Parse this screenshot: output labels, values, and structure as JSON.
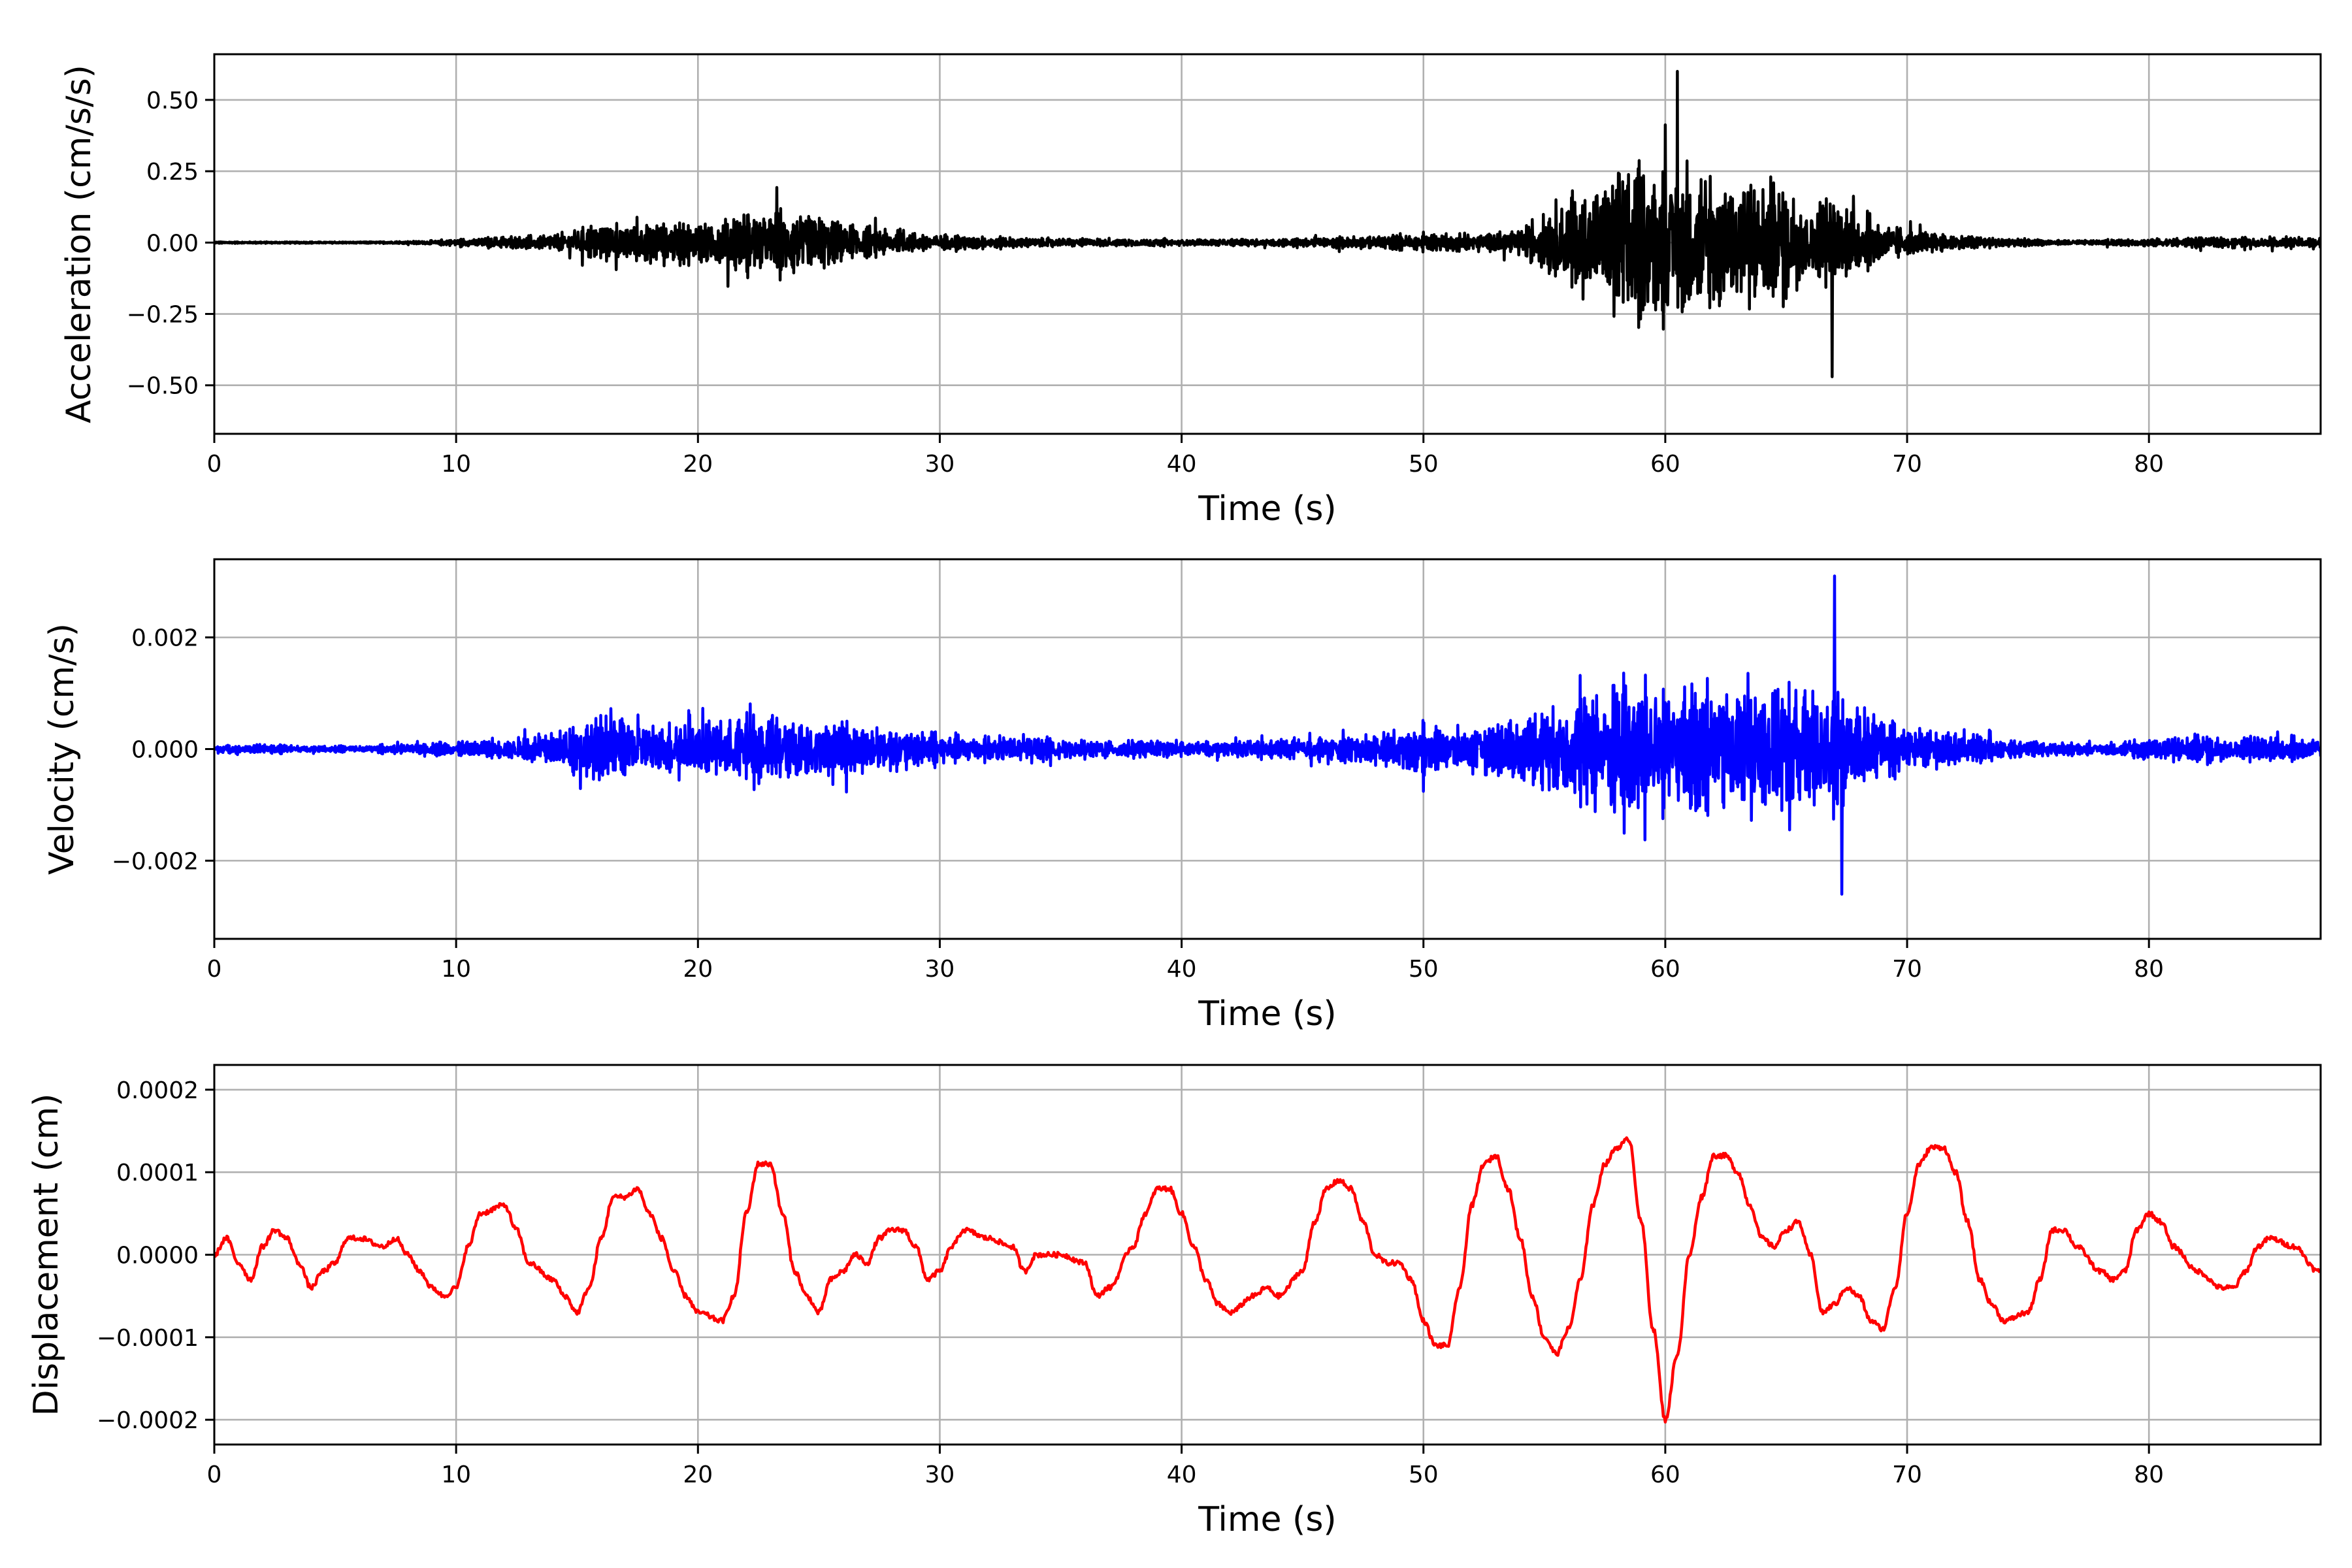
{
  "chart_data": [
    {
      "type": "line",
      "ylabel": "Acceleration (cm/s/s)",
      "xlabel": "Time (s)",
      "color": "#000000",
      "xlim": [
        0,
        87.1
      ],
      "ylim": [
        -0.67,
        0.66
      ],
      "grid": true,
      "xticks": [
        "0",
        "10",
        "20",
        "30",
        "40",
        "50",
        "60",
        "70",
        "80"
      ],
      "yticks": [
        -0.5,
        -0.25,
        0.0,
        0.25,
        0.5
      ],
      "ytick_labels": [
        "−0.50",
        "−0.25",
        "0.00",
        "0.25",
        "0.50"
      ],
      "peaks": {
        "max": 0.6,
        "min": -0.47,
        "max_time": 60.5,
        "min_time": 66.9
      },
      "envelope": [
        [
          0,
          0.005
        ],
        [
          2,
          0.005
        ],
        [
          4,
          0.005
        ],
        [
          6,
          0.005
        ],
        [
          8,
          0.008
        ],
        [
          10,
          0.02
        ],
        [
          12,
          0.04
        ],
        [
          14,
          0.05
        ],
        [
          16,
          0.12
        ],
        [
          18,
          0.13
        ],
        [
          20,
          0.13
        ],
        [
          22,
          0.2
        ],
        [
          24,
          0.22
        ],
        [
          26,
          0.12
        ],
        [
          28,
          0.08
        ],
        [
          30,
          0.05
        ],
        [
          32,
          0.04
        ],
        [
          34,
          0.03
        ],
        [
          36,
          0.025
        ],
        [
          38,
          0.025
        ],
        [
          40,
          0.02
        ],
        [
          42,
          0.02
        ],
        [
          44,
          0.025
        ],
        [
          46,
          0.03
        ],
        [
          48,
          0.04
        ],
        [
          50,
          0.06
        ],
        [
          52,
          0.06
        ],
        [
          54,
          0.08
        ],
        [
          56,
          0.3
        ],
        [
          58,
          0.45
        ],
        [
          60,
          0.5
        ],
        [
          62,
          0.45
        ],
        [
          64,
          0.45
        ],
        [
          66,
          0.3
        ],
        [
          68,
          0.2
        ],
        [
          70,
          0.08
        ],
        [
          72,
          0.05
        ],
        [
          74,
          0.03
        ],
        [
          76,
          0.015
        ],
        [
          78,
          0.015
        ],
        [
          80,
          0.025
        ],
        [
          82,
          0.03
        ],
        [
          84,
          0.03
        ],
        [
          86,
          0.035
        ]
      ]
    },
    {
      "type": "line",
      "ylabel": "Velocity (cm/s)",
      "xlabel": "Time (s)",
      "color": "#0000ff",
      "xlim": [
        0,
        87.1
      ],
      "ylim": [
        -0.0034,
        0.0034
      ],
      "grid": true,
      "xticks": [
        "0",
        "10",
        "20",
        "30",
        "40",
        "50",
        "60",
        "70",
        "80"
      ],
      "yticks": [
        -0.002,
        0.0,
        0.002
      ],
      "ytick_labels": [
        "−0.002",
        "0.000",
        "0.002"
      ],
      "peaks": {
        "max": 0.0031,
        "min": -0.0026,
        "max_time": 67.0,
        "min_time": 67.3
      },
      "envelope": [
        [
          0,
          0.00015
        ],
        [
          2,
          0.00015
        ],
        [
          4,
          0.0001
        ],
        [
          6,
          0.0001
        ],
        [
          8,
          0.00015
        ],
        [
          10,
          0.00025
        ],
        [
          12,
          0.00035
        ],
        [
          14,
          0.0005
        ],
        [
          16,
          0.0012
        ],
        [
          18,
          0.0009
        ],
        [
          20,
          0.0008
        ],
        [
          22,
          0.0011
        ],
        [
          24,
          0.0011
        ],
        [
          26,
          0.0008
        ],
        [
          28,
          0.0007
        ],
        [
          30,
          0.0005
        ],
        [
          32,
          0.0004
        ],
        [
          34,
          0.00035
        ],
        [
          36,
          0.0003
        ],
        [
          38,
          0.0003
        ],
        [
          40,
          0.00025
        ],
        [
          42,
          0.00025
        ],
        [
          44,
          0.0003
        ],
        [
          46,
          0.0004
        ],
        [
          48,
          0.0005
        ],
        [
          50,
          0.0008
        ],
        [
          52,
          0.0007
        ],
        [
          54,
          0.001
        ],
        [
          56,
          0.0018
        ],
        [
          58,
          0.0025
        ],
        [
          60,
          0.002
        ],
        [
          62,
          0.002
        ],
        [
          64,
          0.0023
        ],
        [
          66,
          0.0023
        ],
        [
          68,
          0.0014
        ],
        [
          70,
          0.0007
        ],
        [
          72,
          0.0005
        ],
        [
          74,
          0.0003
        ],
        [
          76,
          0.00025
        ],
        [
          78,
          0.00015
        ],
        [
          80,
          0.0004
        ],
        [
          82,
          0.0005
        ],
        [
          84,
          0.0004
        ],
        [
          86,
          0.0004
        ]
      ]
    },
    {
      "type": "line",
      "ylabel": "Displacement (cm)",
      "xlabel": "Time (s)",
      "color": "#ff0000",
      "xlim": [
        0,
        87.1
      ],
      "ylim": [
        -0.00023,
        0.00023
      ],
      "grid": true,
      "xticks": [
        "0",
        "10",
        "20",
        "30",
        "40",
        "50",
        "60",
        "70",
        "80"
      ],
      "yticks": [
        -0.0002,
        -0.0001,
        0.0,
        0.0001,
        0.0002
      ],
      "ytick_labels": [
        "−0.0002",
        "−0.0001",
        "0.0000",
        "0.0001",
        "0.0002"
      ],
      "points": [
        [
          0,
          0
        ],
        [
          0.5,
          2e-05
        ],
        [
          1,
          -1e-05
        ],
        [
          1.5,
          -3e-05
        ],
        [
          2,
          1e-05
        ],
        [
          2.5,
          3e-05
        ],
        [
          3,
          2e-05
        ],
        [
          3.5,
          -1e-05
        ],
        [
          4,
          -4e-05
        ],
        [
          4.5,
          -2e-05
        ],
        [
          5,
          -1e-05
        ],
        [
          5.5,
          2e-05
        ],
        [
          6,
          2e-05
        ],
        [
          7,
          1e-05
        ],
        [
          7.5,
          2e-05
        ],
        [
          8,
          0
        ],
        [
          8.5,
          -2e-05
        ],
        [
          9,
          -4e-05
        ],
        [
          9.5,
          -5e-05
        ],
        [
          10,
          -4e-05
        ],
        [
          10.5,
          1e-05
        ],
        [
          11,
          5e-05
        ],
        [
          12,
          6e-05
        ],
        [
          12.5,
          3e-05
        ],
        [
          13,
          -1e-05
        ],
        [
          14,
          -3e-05
        ],
        [
          14.5,
          -5e-05
        ],
        [
          15,
          -7e-05
        ],
        [
          15.5,
          -4e-05
        ],
        [
          16,
          2e-05
        ],
        [
          16.5,
          7e-05
        ],
        [
          17,
          7e-05
        ],
        [
          17.5,
          8e-05
        ],
        [
          18,
          5e-05
        ],
        [
          18.5,
          2e-05
        ],
        [
          19,
          -2e-05
        ],
        [
          19.5,
          -5e-05
        ],
        [
          20,
          -7e-05
        ],
        [
          21,
          -8e-05
        ],
        [
          21.5,
          -5e-05
        ],
        [
          22,
          5e-05
        ],
        [
          22.5,
          0.00011
        ],
        [
          23,
          0.00011
        ],
        [
          23.5,
          5e-05
        ],
        [
          24,
          -2e-05
        ],
        [
          24.5,
          -5e-05
        ],
        [
          25,
          -7e-05
        ],
        [
          25.5,
          -3e-05
        ],
        [
          26,
          -2e-05
        ],
        [
          26.5,
          0
        ],
        [
          27,
          -1e-05
        ],
        [
          27.5,
          2e-05
        ],
        [
          28,
          3e-05
        ],
        [
          28.5,
          3e-05
        ],
        [
          29,
          1e-05
        ],
        [
          29.5,
          -3e-05
        ],
        [
          30,
          -2e-05
        ],
        [
          30.5,
          1e-05
        ],
        [
          31,
          3e-05
        ],
        [
          32,
          2e-05
        ],
        [
          33,
          1e-05
        ],
        [
          33.5,
          -2e-05
        ],
        [
          34,
          0
        ],
        [
          35,
          0
        ],
        [
          36,
          -1e-05
        ],
        [
          36.5,
          -5e-05
        ],
        [
          37,
          -4e-05
        ],
        [
          38,
          1e-05
        ],
        [
          38.5,
          5e-05
        ],
        [
          39,
          8e-05
        ],
        [
          39.5,
          8e-05
        ],
        [
          40,
          5e-05
        ],
        [
          40.5,
          1e-05
        ],
        [
          41,
          -3e-05
        ],
        [
          41.5,
          -6e-05
        ],
        [
          42,
          -7e-05
        ],
        [
          43,
          -5e-05
        ],
        [
          43.5,
          -4e-05
        ],
        [
          44,
          -5e-05
        ],
        [
          45,
          -2e-05
        ],
        [
          45.5,
          4e-05
        ],
        [
          46,
          8e-05
        ],
        [
          46.5,
          9e-05
        ],
        [
          47,
          8e-05
        ],
        [
          47.5,
          4e-05
        ],
        [
          48,
          0
        ],
        [
          48.5,
          -1e-05
        ],
        [
          49,
          -1e-05
        ],
        [
          49.5,
          -3e-05
        ],
        [
          50,
          -8e-05
        ],
        [
          50.5,
          -0.00011
        ],
        [
          51,
          -0.00011
        ],
        [
          51.5,
          -4e-05
        ],
        [
          52,
          6e-05
        ],
        [
          52.5,
          0.00011
        ],
        [
          53,
          0.00012
        ],
        [
          53.5,
          8e-05
        ],
        [
          54,
          2e-05
        ],
        [
          54.5,
          -5e-05
        ],
        [
          55,
          -0.0001
        ],
        [
          55.5,
          -0.00012
        ],
        [
          56,
          -9e-05
        ],
        [
          56.5,
          -3e-05
        ],
        [
          57,
          6e-05
        ],
        [
          57.5,
          0.00011
        ],
        [
          58,
          0.00013
        ],
        [
          58.5,
          0.00014
        ],
        [
          59,
          4e-05
        ],
        [
          59.5,
          -9e-05
        ],
        [
          60,
          -0.0002
        ],
        [
          60.5,
          -0.00012
        ],
        [
          61,
          0
        ],
        [
          61.5,
          7e-05
        ],
        [
          62,
          0.00012
        ],
        [
          62.5,
          0.00012
        ],
        [
          63,
          0.0001
        ],
        [
          63.5,
          6e-05
        ],
        [
          64,
          2e-05
        ],
        [
          64.5,
          1e-05
        ],
        [
          65,
          3e-05
        ],
        [
          65.5,
          4e-05
        ],
        [
          66,
          0
        ],
        [
          66.5,
          -7e-05
        ],
        [
          67,
          -6e-05
        ],
        [
          67.5,
          -4e-05
        ],
        [
          68,
          -5e-05
        ],
        [
          68.5,
          -8e-05
        ],
        [
          69,
          -9e-05
        ],
        [
          69.5,
          -4e-05
        ],
        [
          70,
          5e-05
        ],
        [
          70.5,
          0.00011
        ],
        [
          71,
          0.00013
        ],
        [
          71.5,
          0.00013
        ],
        [
          72,
          0.0001
        ],
        [
          72.5,
          4e-05
        ],
        [
          73,
          -3e-05
        ],
        [
          73.5,
          -6e-05
        ],
        [
          74,
          -8e-05
        ],
        [
          75,
          -7e-05
        ],
        [
          75.5,
          -3e-05
        ],
        [
          76,
          3e-05
        ],
        [
          76.5,
          3e-05
        ],
        [
          77,
          1e-05
        ],
        [
          78,
          -2e-05
        ],
        [
          78.5,
          -3e-05
        ],
        [
          79,
          -2e-05
        ],
        [
          79.5,
          3e-05
        ],
        [
          80,
          5e-05
        ],
        [
          80.5,
          4e-05
        ],
        [
          81,
          1e-05
        ],
        [
          82,
          -2e-05
        ],
        [
          83,
          -4e-05
        ],
        [
          83.5,
          -4e-05
        ],
        [
          84,
          -2e-05
        ],
        [
          84.5,
          1e-05
        ],
        [
          85,
          2e-05
        ],
        [
          86,
          1e-05
        ],
        [
          87,
          -2e-05
        ]
      ]
    }
  ]
}
